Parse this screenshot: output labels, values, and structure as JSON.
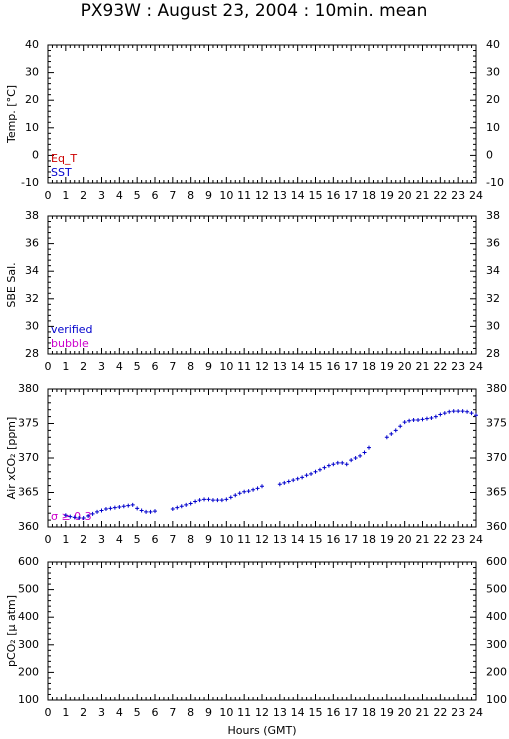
{
  "chart_data": [
    {
      "type": "scatter",
      "title": "PX93W : August 23, 2004 : 10min. mean",
      "ylabel": "Temp. [°C]",
      "xlim": [
        0,
        24
      ],
      "xticks": [
        0,
        1,
        2,
        3,
        4,
        5,
        6,
        7,
        8,
        9,
        10,
        11,
        12,
        13,
        14,
        15,
        16,
        17,
        18,
        19,
        20,
        21,
        22,
        23,
        24
      ],
      "ylim": [
        -10,
        40
      ],
      "yticks": [
        -10,
        0,
        10,
        20,
        30,
        40
      ],
      "series": [
        {
          "name": "Eq_T",
          "color": "#cc0000",
          "x": [],
          "values": []
        },
        {
          "name": "SST",
          "color": "#0000cc",
          "x": [],
          "values": []
        }
      ]
    },
    {
      "type": "scatter",
      "ylabel": "SBE Sal.",
      "xlim": [
        0,
        24
      ],
      "xticks": [
        0,
        1,
        2,
        3,
        4,
        5,
        6,
        7,
        8,
        9,
        10,
        11,
        12,
        13,
        14,
        15,
        16,
        17,
        18,
        19,
        20,
        21,
        22,
        23,
        24
      ],
      "ylim": [
        28,
        38
      ],
      "yticks": [
        28,
        30,
        32,
        34,
        36,
        38
      ],
      "series": [
        {
          "name": "verified",
          "color": "#0000cc",
          "x": [],
          "values": []
        },
        {
          "name": "bubble",
          "color": "#cc00cc",
          "x": [],
          "values": []
        }
      ]
    },
    {
      "type": "scatter",
      "ylabel": "Air xCO₂ [ppm]",
      "xlim": [
        0,
        24
      ],
      "xticks": [
        0,
        1,
        2,
        3,
        4,
        5,
        6,
        7,
        8,
        9,
        10,
        11,
        12,
        13,
        14,
        15,
        16,
        17,
        18,
        19,
        20,
        21,
        22,
        23,
        24
      ],
      "ylim": [
        360,
        380
      ],
      "yticks": [
        360,
        365,
        370,
        375,
        380
      ],
      "series": [
        {
          "name": "σ ≥ 0.3",
          "color": "#cc00cc",
          "x": [],
          "values": []
        },
        {
          "color": "#0000cc",
          "x": [
            1,
            1.25,
            1.5,
            1.75,
            2,
            2.25,
            2.5,
            2.75,
            3,
            3.25,
            3.5,
            3.75,
            4,
            4.25,
            4.5,
            4.75,
            5,
            5.25,
            5.5,
            5.75,
            6,
            7,
            7.25,
            7.5,
            7.75,
            8,
            8.25,
            8.5,
            8.75,
            9,
            9.25,
            9.5,
            9.75,
            10,
            10.25,
            10.5,
            10.75,
            11,
            11.25,
            11.5,
            11.75,
            12,
            13,
            13.25,
            13.5,
            13.75,
            14,
            14.25,
            14.5,
            14.75,
            15,
            15.25,
            15.5,
            15.75,
            16,
            16.25,
            16.5,
            16.75,
            17,
            17.25,
            17.5,
            17.75,
            18,
            19,
            19.25,
            19.5,
            19.75,
            20,
            20.25,
            20.5,
            20.75,
            21,
            21.25,
            21.5,
            21.75,
            22,
            22.25,
            22.5,
            22.75,
            23,
            23.25,
            23.5,
            23.75,
            24
          ],
          "values": [
            361.7,
            361.5,
            361.4,
            361.3,
            361.3,
            361.6,
            361.9,
            362.2,
            362.4,
            362.6,
            362.7,
            362.8,
            362.9,
            363.0,
            363.1,
            363.2,
            362.7,
            362.4,
            362.2,
            362.2,
            362.3,
            362.6,
            362.8,
            363.0,
            363.2,
            363.4,
            363.7,
            363.9,
            364.0,
            364.0,
            363.9,
            363.9,
            363.9,
            364.0,
            364.3,
            364.6,
            364.9,
            365.1,
            365.2,
            365.4,
            365.6,
            365.9,
            366.2,
            366.4,
            366.6,
            366.8,
            367.0,
            367.2,
            367.5,
            367.7,
            368.0,
            368.3,
            368.6,
            368.9,
            369.1,
            369.3,
            369.3,
            369.1,
            369.7,
            370.0,
            370.3,
            370.8,
            371.5,
            373.0,
            373.5,
            374.0,
            374.6,
            375.2,
            375.4,
            375.5,
            375.5,
            375.6,
            375.7,
            375.8,
            376.0,
            376.3,
            376.5,
            376.7,
            376.8,
            376.8,
            376.8,
            376.7,
            376.5,
            376.2
          ]
        }
      ]
    },
    {
      "type": "scatter",
      "ylabel": "pCO₂ [μ atm]",
      "xlabel": "Hours (GMT)",
      "xlim": [
        0,
        24
      ],
      "xticks": [
        0,
        1,
        2,
        3,
        4,
        5,
        6,
        7,
        8,
        9,
        10,
        11,
        12,
        13,
        14,
        15,
        16,
        17,
        18,
        19,
        20,
        21,
        22,
        23,
        24
      ],
      "ylim": [
        100,
        600
      ],
      "yticks": [
        100,
        200,
        300,
        400,
        500,
        600
      ],
      "series": []
    }
  ]
}
